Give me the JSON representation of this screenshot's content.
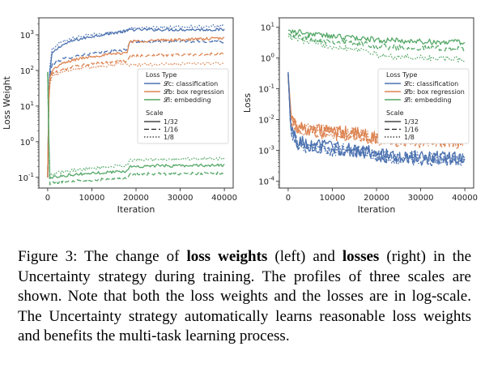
{
  "chart_data": [
    {
      "type": "line",
      "ylabel": "Loss Weight",
      "xlabel": "Iteration",
      "yscale": "log",
      "ylim": [
        0.05,
        3000
      ],
      "xlim": [
        -2000,
        42000
      ],
      "x_ticks": [
        0,
        10000,
        20000,
        30000,
        40000
      ],
      "y_ticks": [
        0.1,
        1,
        10,
        100,
        1000
      ],
      "legend": {
        "placement": "right",
        "title_type": "Loss Type",
        "types": [
          {
            "label": "𝓛c: classification",
            "color": "#4c72b0"
          },
          {
            "label": "𝓛b: box regression",
            "color": "#dd8452"
          },
          {
            "label": "𝓛i: embedding",
            "color": "#55a868"
          }
        ],
        "title_scale": "Scale",
        "scales": [
          {
            "label": "1/32",
            "dash": "solid"
          },
          {
            "label": "1/16",
            "dash": "dashed"
          },
          {
            "label": "1/8",
            "dash": "dotted"
          }
        ]
      },
      "series": [
        {
          "color": "#4c72b0",
          "dash": "solid",
          "x": [
            0,
            300,
            1000,
            3000,
            6000,
            10000,
            14000,
            18000,
            18500,
            25000,
            40000
          ],
          "y": [
            0.1,
            60,
            300,
            500,
            700,
            900,
            1100,
            1300,
            1400,
            1400,
            1400
          ]
        },
        {
          "color": "#4c72b0",
          "dash": "dashed",
          "x": [
            0,
            300,
            1000,
            3000,
            6000,
            10000,
            14000,
            18000,
            18500,
            25000,
            40000
          ],
          "y": [
            0.1,
            50,
            150,
            200,
            250,
            300,
            340,
            380,
            650,
            650,
            650
          ]
        },
        {
          "color": "#4c72b0",
          "dash": "dotted",
          "x": [
            0,
            300,
            1000,
            3000,
            6000,
            10000,
            14000,
            18000,
            18500,
            25000,
            40000
          ],
          "y": [
            0.1,
            80,
            400,
            650,
            850,
            1000,
            1100,
            1250,
            1500,
            1600,
            1800
          ]
        },
        {
          "color": "#dd8452",
          "dash": "solid",
          "x": [
            0,
            300,
            1000,
            3000,
            6000,
            10000,
            14000,
            18000,
            18500,
            25000,
            40000
          ],
          "y": [
            0.1,
            50,
            100,
            150,
            200,
            250,
            280,
            320,
            650,
            700,
            800
          ]
        },
        {
          "color": "#dd8452",
          "dash": "dashed",
          "x": [
            0,
            300,
            1000,
            3000,
            6000,
            10000,
            14000,
            18000,
            18500,
            25000,
            40000
          ],
          "y": [
            0.1,
            40,
            80,
            100,
            130,
            150,
            170,
            190,
            250,
            270,
            290
          ]
        },
        {
          "color": "#dd8452",
          "dash": "dotted",
          "x": [
            0,
            300,
            1000,
            3000,
            6000,
            10000,
            14000,
            18000,
            18500,
            25000,
            40000
          ],
          "y": [
            0.1,
            30,
            70,
            90,
            110,
            125,
            140,
            160,
            140,
            150,
            160
          ]
        },
        {
          "color": "#55a868",
          "dash": "solid",
          "x": [
            0,
            400,
            1000,
            3000,
            6000,
            10000,
            14000,
            18000,
            18500,
            25000,
            40000
          ],
          "y": [
            90,
            0.09,
            0.1,
            0.11,
            0.12,
            0.13,
            0.14,
            0.15,
            0.2,
            0.21,
            0.22
          ]
        },
        {
          "color": "#55a868",
          "dash": "dashed",
          "x": [
            0,
            400,
            1000,
            3000,
            6000,
            10000,
            14000,
            18000,
            18500,
            25000,
            40000
          ],
          "y": [
            90,
            0.06,
            0.07,
            0.075,
            0.08,
            0.085,
            0.09,
            0.1,
            0.12,
            0.125,
            0.13
          ]
        },
        {
          "color": "#55a868",
          "dash": "dotted",
          "x": [
            0,
            400,
            1000,
            3000,
            6000,
            10000,
            14000,
            18000,
            18500,
            25000,
            40000
          ],
          "y": [
            90,
            0.11,
            0.12,
            0.14,
            0.16,
            0.18,
            0.2,
            0.22,
            0.3,
            0.32,
            0.34
          ]
        }
      ]
    },
    {
      "type": "line",
      "ylabel": "Loss",
      "xlabel": "Iteration",
      "yscale": "log",
      "ylim": [
        6e-05,
        20
      ],
      "xlim": [
        -2000,
        42000
      ],
      "x_ticks": [
        0,
        10000,
        20000,
        30000,
        40000
      ],
      "y_ticks": [
        0.0001,
        0.001,
        0.01,
        0.1,
        1,
        10
      ],
      "legend": {
        "placement": "right",
        "title_type": "Loss Type",
        "types": [
          {
            "label": "𝓛c: classification",
            "color": "#4c72b0"
          },
          {
            "label": "𝓛b: box regression",
            "color": "#dd8452"
          },
          {
            "label": "𝓛i: embedding",
            "color": "#55a868"
          }
        ],
        "title_scale": "Scale",
        "scales": [
          {
            "label": "1/32",
            "dash": "solid"
          },
          {
            "label": "1/16",
            "dash": "dashed"
          },
          {
            "label": "1/8",
            "dash": "dotted"
          }
        ]
      },
      "series": [
        {
          "color": "#55a868",
          "dash": "solid",
          "x": [
            0,
            2000,
            5000,
            10000,
            15000,
            18000,
            20000,
            25000,
            30000,
            35000,
            40000
          ],
          "y": [
            8,
            7,
            6,
            5,
            4.5,
            4.2,
            3.8,
            3.6,
            3.4,
            3.3,
            3.2
          ]
        },
        {
          "color": "#55a868",
          "dash": "dashed",
          "x": [
            0,
            2000,
            5000,
            10000,
            15000,
            18000,
            20000,
            25000,
            30000,
            35000,
            40000
          ],
          "y": [
            6,
            5,
            4.2,
            3.5,
            3.0,
            2.8,
            2.4,
            2.2,
            2.1,
            2.0,
            1.9
          ]
        },
        {
          "color": "#55a868",
          "dash": "dotted",
          "x": [
            0,
            2000,
            5000,
            10000,
            15000,
            18000,
            20000,
            25000,
            30000,
            35000,
            40000
          ],
          "y": [
            5,
            4,
            3.2,
            2.4,
            2.0,
            1.8,
            1.2,
            1.1,
            1.0,
            0.95,
            0.9
          ]
        },
        {
          "color": "#dd8452",
          "dash": "solid",
          "x": [
            0,
            500,
            1000,
            2000,
            5000,
            10000,
            15000,
            18000,
            20000,
            25000,
            30000,
            35000,
            40000
          ],
          "y": [
            0.3,
            0.03,
            0.01,
            0.006,
            0.005,
            0.004,
            0.0035,
            0.0032,
            0.0025,
            0.0024,
            0.0023,
            0.0022,
            0.0022
          ]
        },
        {
          "color": "#dd8452",
          "dash": "dashed",
          "x": [
            0,
            500,
            1000,
            2000,
            5000,
            10000,
            15000,
            18000,
            20000,
            25000,
            30000,
            35000,
            40000
          ],
          "y": [
            0.2,
            0.02,
            0.008,
            0.005,
            0.004,
            0.0035,
            0.003,
            0.0028,
            0.0022,
            0.0021,
            0.002,
            0.002,
            0.0019
          ]
        },
        {
          "color": "#dd8452",
          "dash": "dotted",
          "x": [
            0,
            500,
            1000,
            2000,
            5000,
            10000,
            15000,
            18000,
            20000,
            25000,
            30000,
            35000,
            40000
          ],
          "y": [
            0.25,
            0.025,
            0.009,
            0.0055,
            0.0045,
            0.0038,
            0.0033,
            0.003,
            0.0024,
            0.0023,
            0.0022,
            0.0021,
            0.0021
          ]
        },
        {
          "color": "#4c72b0",
          "dash": "solid",
          "x": [
            0,
            500,
            1000,
            2000,
            5000,
            10000,
            15000,
            18000,
            20000,
            25000,
            30000,
            35000,
            40000
          ],
          "y": [
            0.35,
            0.01,
            0.004,
            0.002,
            0.0015,
            0.0012,
            0.001,
            0.0009,
            0.0007,
            0.00065,
            0.0006,
            0.0006,
            0.00055
          ]
        },
        {
          "color": "#4c72b0",
          "dash": "dashed",
          "x": [
            0,
            500,
            1000,
            2000,
            5000,
            10000,
            15000,
            18000,
            20000,
            25000,
            30000,
            35000,
            40000
          ],
          "y": [
            0.3,
            0.008,
            0.003,
            0.0017,
            0.0012,
            0.001,
            0.0009,
            0.0008,
            0.0006,
            0.00055,
            0.0005,
            0.0005,
            0.00048
          ]
        },
        {
          "color": "#4c72b0",
          "dash": "dotted",
          "x": [
            0,
            500,
            1000,
            2000,
            5000,
            10000,
            15000,
            18000,
            20000,
            25000,
            30000,
            35000,
            40000
          ],
          "y": [
            0.32,
            0.009,
            0.0035,
            0.0018,
            0.0013,
            0.0011,
            0.001,
            0.0009,
            0.00065,
            0.0006,
            0.00055,
            0.00052,
            0.0005
          ]
        }
      ]
    }
  ],
  "caption": {
    "lead": "Figure 3: The change of ",
    "bold1": "loss weights",
    "mid1": " (left) and ",
    "bold2": "losses",
    "rest": " (right) in the Uncertainty strategy during training. The profiles of three scales are shown. Note that both the loss weights and the losses are in log-scale. The Uncertainty strategy automatically learns reasonable loss weights and benefits the multi-task learning process."
  }
}
